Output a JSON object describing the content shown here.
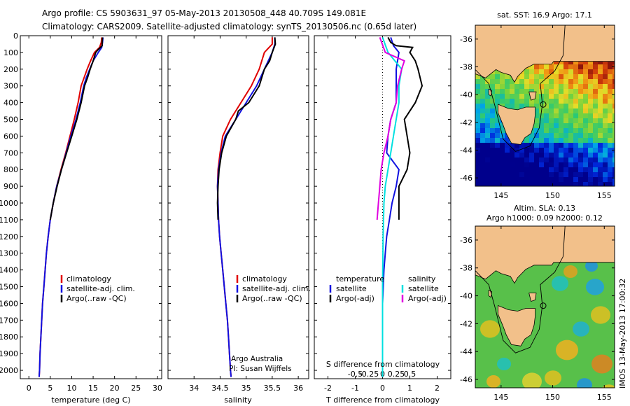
{
  "header": {
    "line1": "Argo profile: CS 5903631_97 05-May-2013 20130508_448 40.709S 149.081E",
    "line2": "Climatology: CARS2009. Satellite-adjusted climatology: synTS_20130506.nc (0.65d later)"
  },
  "side_label": "IMOS 13-May-2013 17:00:32",
  "map1": {
    "title": "sat. SST: 16.9 Argo: 17.1"
  },
  "map2": {
    "title1": "Altim. SLA: 0.13",
    "title2": "Argo h1000: 0.09 h2000: 0.12"
  },
  "credit": {
    "line1": "Argo Australia",
    "line2": "PI: Susan Wijffels"
  },
  "colors": {
    "climatology": "#e00000",
    "satellite": "#1010e0",
    "argo": "#000000",
    "sal_sat": "#00e0e0",
    "sal_argo": "#e000e0"
  },
  "chart_data": [
    {
      "type": "line",
      "xlabel": "temperature (deg C)",
      "ylabel": "",
      "xlim": [
        -2,
        31
      ],
      "ylim": [
        2050,
        0
      ],
      "xticks": [
        0,
        5,
        10,
        15,
        20,
        25,
        30
      ],
      "yticks": [
        0,
        100,
        200,
        300,
        400,
        500,
        600,
        700,
        800,
        900,
        1000,
        1100,
        1200,
        1300,
        1400,
        1500,
        1600,
        1700,
        1800,
        1900,
        2000
      ],
      "legend": [
        "climatology",
        "satellite-adj. clim.",
        "Argo(..raw -QC)"
      ],
      "series": [
        {
          "name": "climatology",
          "color": "#e00000",
          "points": [
            [
              17.0,
              10
            ],
            [
              16.9,
              40
            ],
            [
              16.5,
              70
            ],
            [
              15.3,
              100
            ],
            [
              14.4,
              150
            ],
            [
              13.6,
              200
            ],
            [
              12.9,
              250
            ],
            [
              12.2,
              300
            ],
            [
              11.5,
              400
            ],
            [
              10.6,
              500
            ],
            [
              9.6,
              600
            ],
            [
              8.6,
              700
            ],
            [
              7.5,
              800
            ],
            [
              6.5,
              900
            ],
            [
              5.7,
              1000
            ],
            [
              5.0,
              1100
            ],
            [
              4.5,
              1200
            ],
            [
              4.1,
              1300
            ],
            [
              3.8,
              1400
            ],
            [
              3.5,
              1500
            ],
            [
              3.2,
              1600
            ],
            [
              3.0,
              1700
            ],
            [
              2.8,
              1800
            ],
            [
              2.6,
              1900
            ],
            [
              2.5,
              2000
            ],
            [
              2.4,
              2040
            ]
          ]
        },
        {
          "name": "satellite-adj. clim.",
          "color": "#1010e0",
          "points": [
            [
              17.3,
              10
            ],
            [
              17.2,
              40
            ],
            [
              17.0,
              70
            ],
            [
              16.2,
              100
            ],
            [
              15.0,
              150
            ],
            [
              14.2,
              200
            ],
            [
              13.4,
              250
            ],
            [
              12.8,
              300
            ],
            [
              12.0,
              400
            ],
            [
              11.0,
              500
            ],
            [
              9.8,
              600
            ],
            [
              8.7,
              700
            ],
            [
              7.6,
              800
            ],
            [
              6.5,
              900
            ],
            [
              5.7,
              1000
            ],
            [
              5.0,
              1100
            ],
            [
              4.5,
              1200
            ],
            [
              4.1,
              1300
            ],
            [
              3.8,
              1400
            ],
            [
              3.5,
              1500
            ],
            [
              3.2,
              1600
            ],
            [
              3.0,
              1700
            ],
            [
              2.8,
              1800
            ],
            [
              2.6,
              1900
            ],
            [
              2.5,
              2000
            ],
            [
              2.4,
              2040
            ]
          ]
        },
        {
          "name": "Argo(..raw -QC)",
          "color": "#000000",
          "points": [
            [
              17.2,
              10
            ],
            [
              17.1,
              40
            ],
            [
              17.1,
              60
            ],
            [
              16.3,
              80
            ],
            [
              15.6,
              100
            ],
            [
              15.0,
              150
            ],
            [
              14.3,
              200
            ],
            [
              13.7,
              250
            ],
            [
              13.0,
              300
            ],
            [
              12.2,
              400
            ],
            [
              11.2,
              500
            ],
            [
              10.0,
              600
            ],
            [
              8.8,
              700
            ],
            [
              7.6,
              800
            ],
            [
              6.6,
              900
            ],
            [
              5.7,
              1000
            ],
            [
              5.0,
              1100
            ]
          ]
        }
      ]
    },
    {
      "type": "line",
      "xlabel": "salinity",
      "xlim": [
        33.5,
        36.2
      ],
      "ylim": [
        2050,
        0
      ],
      "xticks": [
        34,
        34.5,
        35,
        35.5,
        36
      ],
      "legend": [
        "climatology",
        "satellite-adj. clim.",
        "Argo(..raw -QC)"
      ],
      "series": [
        {
          "name": "climatology",
          "color": "#e00000",
          "points": [
            [
              35.5,
              10
            ],
            [
              35.5,
              50
            ],
            [
              35.35,
              100
            ],
            [
              35.25,
              200
            ],
            [
              35.1,
              300
            ],
            [
              34.9,
              400
            ],
            [
              34.7,
              500
            ],
            [
              34.55,
              600
            ],
            [
              34.5,
              700
            ],
            [
              34.46,
              800
            ],
            [
              34.45,
              900
            ],
            [
              34.46,
              1000
            ],
            [
              34.47,
              1100
            ],
            [
              34.49,
              1200
            ],
            [
              34.52,
              1300
            ],
            [
              34.55,
              1400
            ],
            [
              34.58,
              1500
            ],
            [
              34.61,
              1600
            ],
            [
              34.64,
              1700
            ],
            [
              34.66,
              1800
            ],
            [
              34.68,
              1900
            ],
            [
              34.7,
              2000
            ],
            [
              34.71,
              2040
            ]
          ]
        },
        {
          "name": "satellite-adj. clim.",
          "color": "#1010e0",
          "points": [
            [
              35.55,
              10
            ],
            [
              35.55,
              50
            ],
            [
              35.5,
              100
            ],
            [
              35.35,
              200
            ],
            [
              35.2,
              300
            ],
            [
              35.0,
              400
            ],
            [
              34.8,
              500
            ],
            [
              34.6,
              600
            ],
            [
              34.52,
              700
            ],
            [
              34.47,
              800
            ],
            [
              34.45,
              900
            ],
            [
              34.46,
              1000
            ],
            [
              34.47,
              1100
            ],
            [
              34.49,
              1200
            ],
            [
              34.52,
              1300
            ],
            [
              34.55,
              1400
            ],
            [
              34.58,
              1500
            ],
            [
              34.61,
              1600
            ],
            [
              34.64,
              1700
            ],
            [
              34.66,
              1800
            ],
            [
              34.68,
              1900
            ],
            [
              34.7,
              2000
            ],
            [
              34.71,
              2040
            ]
          ]
        },
        {
          "name": "Argo(..raw -QC)",
          "color": "#000000",
          "points": [
            [
              35.55,
              10
            ],
            [
              35.56,
              50
            ],
            [
              35.5,
              100
            ],
            [
              35.45,
              150
            ],
            [
              35.35,
              200
            ],
            [
              35.25,
              300
            ],
            [
              35.05,
              400
            ],
            [
              34.85,
              450
            ],
            [
              34.8,
              500
            ],
            [
              34.62,
              600
            ],
            [
              34.53,
              700
            ],
            [
              34.48,
              800
            ],
            [
              34.46,
              900
            ],
            [
              34.45,
              1000
            ],
            [
              34.46,
              1100
            ]
          ]
        }
      ]
    },
    {
      "type": "line",
      "xlabel": "T difference from climatology",
      "xlabel2": "S difference from climatology",
      "xlim": [
        -2.5,
        2.5
      ],
      "ylim": [
        2050,
        0
      ],
      "xticks": [
        -2,
        -1,
        0,
        1,
        2
      ],
      "xticklabels_S": [
        "-0.5",
        "-0.25",
        "0",
        "0.25",
        "0.5"
      ],
      "legend_titles": [
        "temperature",
        "salinity"
      ],
      "legend": [
        "satellite",
        "Argo(-adj)",
        "satellite",
        "Argo(-adj)"
      ],
      "series": [
        {
          "name": "satellite",
          "color": "#1010e0",
          "points": [
            [
              0.3,
              10
            ],
            [
              0.4,
              60
            ],
            [
              0.6,
              100
            ],
            [
              0.5,
              200
            ],
            [
              0.5,
              300
            ],
            [
              0.5,
              400
            ],
            [
              0.3,
              500
            ],
            [
              0.2,
              600
            ],
            [
              0.15,
              700
            ],
            [
              0.6,
              800
            ],
            [
              0.5,
              900
            ],
            [
              0.35,
              1000
            ],
            [
              0.25,
              1100
            ],
            [
              0.15,
              1200
            ],
            [
              0.1,
              1300
            ],
            [
              0.05,
              1400
            ],
            [
              0.0,
              1600
            ],
            [
              0.0,
              1800
            ],
            [
              0.0,
              2040
            ]
          ]
        },
        {
          "name": "Argo(-adj)",
          "color": "#000000",
          "points": [
            [
              0.2,
              10
            ],
            [
              0.3,
              40
            ],
            [
              0.5,
              60
            ],
            [
              1.1,
              70
            ],
            [
              1.0,
              100
            ],
            [
              1.2,
              150
            ],
            [
              1.3,
              200
            ],
            [
              1.45,
              300
            ],
            [
              1.2,
              400
            ],
            [
              0.8,
              500
            ],
            [
              0.9,
              600
            ],
            [
              1.0,
              700
            ],
            [
              0.9,
              800
            ],
            [
              0.6,
              900
            ],
            [
              0.6,
              1000
            ],
            [
              0.6,
              1100
            ]
          ]
        },
        {
          "name": "satellite",
          "color": "#00e0e0",
          "points": [
            [
              0.0,
              10
            ],
            [
              0.2,
              100
            ],
            [
              0.7,
              200
            ],
            [
              0.6,
              300
            ],
            [
              0.6,
              400
            ],
            [
              0.5,
              500
            ],
            [
              0.4,
              600
            ],
            [
              0.3,
              700
            ],
            [
              0.2,
              800
            ],
            [
              0.1,
              900
            ],
            [
              0.05,
              1000
            ],
            [
              0.02,
              1200
            ],
            [
              0.0,
              1500
            ],
            [
              0.0,
              2040
            ]
          ]
        },
        {
          "name": "Argo(-adj)",
          "color": "#e000e0",
          "points": [
            [
              -0.1,
              10
            ],
            [
              0.1,
              100
            ],
            [
              0.8,
              150
            ],
            [
              0.7,
              200
            ],
            [
              0.55,
              300
            ],
            [
              0.5,
              400
            ],
            [
              0.3,
              500
            ],
            [
              0.2,
              600
            ],
            [
              0.05,
              700
            ],
            [
              -0.05,
              800
            ],
            [
              -0.1,
              900
            ],
            [
              -0.15,
              1000
            ],
            [
              -0.2,
              1100
            ]
          ]
        }
      ]
    },
    {
      "type": "heatmap",
      "title": "sat. SST: 16.9 Argo: 17.1",
      "xlim": [
        142.5,
        156
      ],
      "ylim": [
        -46.6,
        -35
      ],
      "xticks": [
        145,
        150,
        155
      ],
      "yticks": [
        -36,
        -38,
        -40,
        -42,
        -44,
        -46
      ],
      "marker": [
        149.081,
        -40.709
      ]
    },
    {
      "type": "heatmap",
      "title": "Altim. SLA: 0.13",
      "subtitle": "Argo h1000: 0.09 h2000: 0.12",
      "xlim": [
        142.5,
        156
      ],
      "ylim": [
        -46.6,
        -35
      ],
      "xticks": [
        145,
        150,
        155
      ],
      "yticks": [
        -36,
        -38,
        -40,
        -42,
        -44,
        -46
      ],
      "marker": [
        149.081,
        -40.709
      ]
    }
  ]
}
